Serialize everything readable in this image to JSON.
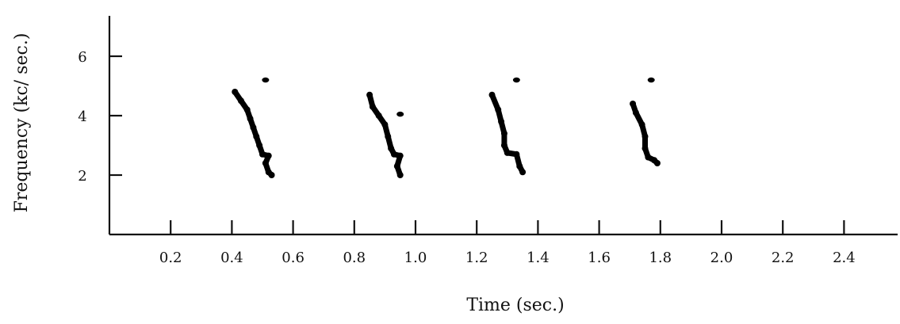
{
  "chart_data": {
    "type": "scatter",
    "xlabel": "Time (sec.)",
    "ylabel": "Frequency (kc/ sec.)",
    "xticks": [
      "0.2",
      "0.4",
      "0.6",
      "0.8",
      "1.0",
      "1.2",
      "1.4",
      "1.6",
      "1.8",
      "2.0",
      "2.2",
      "2.4"
    ],
    "yticks": [
      "2",
      "4",
      "6"
    ],
    "xlim": [
      0.0,
      2.55
    ],
    "ylim": [
      0.0,
      7.5
    ],
    "grid": false,
    "series": [
      {
        "points": [
          {
            "x": 0.41,
            "y": 4.8
          },
          {
            "x": 0.43,
            "y": 4.5
          },
          {
            "x": 0.45,
            "y": 4.2
          },
          {
            "x": 0.46,
            "y": 3.9
          },
          {
            "x": 0.47,
            "y": 3.6
          },
          {
            "x": 0.48,
            "y": 3.3
          },
          {
            "x": 0.49,
            "y": 3.0
          },
          {
            "x": 0.5,
            "y": 2.7
          },
          {
            "x": 0.52,
            "y": 2.65
          },
          {
            "x": 0.51,
            "y": 2.4
          },
          {
            "x": 0.52,
            "y": 2.1
          },
          {
            "x": 0.53,
            "y": 2.0
          }
        ],
        "outliers": [
          {
            "x": 0.51,
            "y": 5.2
          }
        ]
      },
      {
        "points": [
          {
            "x": 0.85,
            "y": 4.7
          },
          {
            "x": 0.86,
            "y": 4.3
          },
          {
            "x": 0.88,
            "y": 4.0
          },
          {
            "x": 0.9,
            "y": 3.7
          },
          {
            "x": 0.91,
            "y": 3.3
          },
          {
            "x": 0.92,
            "y": 2.9
          },
          {
            "x": 0.93,
            "y": 2.7
          },
          {
            "x": 0.95,
            "y": 2.65
          },
          {
            "x": 0.94,
            "y": 2.3
          },
          {
            "x": 0.95,
            "y": 2.0
          }
        ],
        "outliers": [
          {
            "x": 0.95,
            "y": 4.05
          }
        ]
      },
      {
        "points": [
          {
            "x": 1.25,
            "y": 4.7
          },
          {
            "x": 1.27,
            "y": 4.2
          },
          {
            "x": 1.28,
            "y": 3.8
          },
          {
            "x": 1.29,
            "y": 3.4
          },
          {
            "x": 1.29,
            "y": 3.0
          },
          {
            "x": 1.3,
            "y": 2.75
          },
          {
            "x": 1.33,
            "y": 2.7
          },
          {
            "x": 1.34,
            "y": 2.3
          },
          {
            "x": 1.35,
            "y": 2.1
          }
        ],
        "outliers": [
          {
            "x": 1.33,
            "y": 5.2
          }
        ]
      },
      {
        "points": [
          {
            "x": 1.71,
            "y": 4.4
          },
          {
            "x": 1.72,
            "y": 4.1
          },
          {
            "x": 1.74,
            "y": 3.7
          },
          {
            "x": 1.75,
            "y": 3.3
          },
          {
            "x": 1.75,
            "y": 2.9
          },
          {
            "x": 1.76,
            "y": 2.6
          },
          {
            "x": 1.78,
            "y": 2.5
          },
          {
            "x": 1.79,
            "y": 2.4
          }
        ],
        "outliers": [
          {
            "x": 1.77,
            "y": 5.2
          }
        ]
      }
    ]
  }
}
